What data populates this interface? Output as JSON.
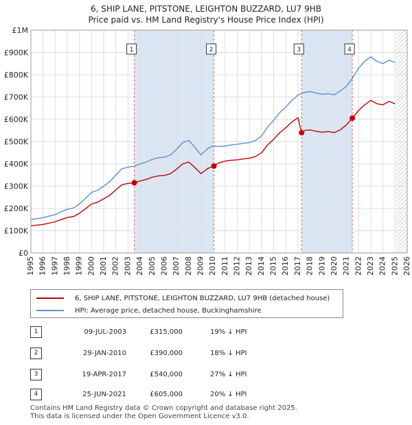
{
  "title_line1": "6, SHIP LANE, PITSTONE, LEIGHTON BUZZARD, LU7 9HB",
  "title_line2": "Price paid vs. HM Land Registry's House Price Index (HPI)",
  "legend": {
    "property": "6, SHIP LANE, PITSTONE, LEIGHTON BUZZARD, LU7 9HB (detached house)",
    "hpi": "HPI: Average price, detached house, Buckinghamshire"
  },
  "colors": {
    "property": "#c00000",
    "hpi": "#5b8fd0",
    "shade": "#dbe6f4",
    "grid": "#dddddd"
  },
  "transactions": [
    {
      "num": "1",
      "date": "09-JUL-2003",
      "price": "£315,000",
      "hpi": "19% ↓ HPI"
    },
    {
      "num": "2",
      "date": "29-JAN-2010",
      "price": "£390,000",
      "hpi": "18% ↓ HPI"
    },
    {
      "num": "3",
      "date": "19-APR-2017",
      "price": "£540,000",
      "hpi": "27% ↓ HPI"
    },
    {
      "num": "4",
      "date": "25-JUN-2021",
      "price": "£605,000",
      "hpi": "20% ↓ HPI"
    }
  ],
  "footer_line1": "Contains HM Land Registry data © Crown copyright and database right 2025.",
  "footer_line2": "This data is licensed under the Open Government Licence v3.0.",
  "chart_data": {
    "type": "line",
    "xlim": [
      1995,
      2026
    ],
    "ylim": [
      0,
      1000000
    ],
    "x_ticks": [
      1995,
      1996,
      1997,
      1998,
      1999,
      2000,
      2001,
      2002,
      2003,
      2004,
      2005,
      2006,
      2007,
      2008,
      2009,
      2010,
      2011,
      2012,
      2013,
      2014,
      2015,
      2016,
      2017,
      2018,
      2019,
      2020,
      2021,
      2022,
      2023,
      2024,
      2025,
      2026
    ],
    "y_ticks": [
      {
        "value": 0,
        "label": "£0"
      },
      {
        "value": 100000,
        "label": "£100K"
      },
      {
        "value": 200000,
        "label": "£200K"
      },
      {
        "value": 300000,
        "label": "£300K"
      },
      {
        "value": 400000,
        "label": "£400K"
      },
      {
        "value": 500000,
        "label": "£500K"
      },
      {
        "value": 600000,
        "label": "£600K"
      },
      {
        "value": 700000,
        "label": "£700K"
      },
      {
        "value": 800000,
        "label": "£800K"
      },
      {
        "value": 900000,
        "label": "£900K"
      },
      {
        "value": 1000000,
        "label": "£1M"
      }
    ],
    "shaded_ranges": [
      [
        2003.52,
        2010.08
      ],
      [
        2017.3,
        2021.48
      ]
    ],
    "forecast_start": 2025.1,
    "sales": [
      {
        "label": "1",
        "x": 2003.52,
        "y": 315000
      },
      {
        "label": "2",
        "x": 2010.08,
        "y": 390000
      },
      {
        "label": "3",
        "x": 2017.3,
        "y": 540000
      },
      {
        "label": "4",
        "x": 2021.48,
        "y": 605000
      }
    ],
    "series": [
      {
        "name": "HPI: Average price, detached house, Buckinghamshire",
        "x": [
          1995.0,
          1996.0,
          1997.0,
          1997.5,
          1998.0,
          1998.5,
          1999.0,
          1999.5,
          2000.0,
          2000.5,
          2001.0,
          2001.5,
          2002.0,
          2002.5,
          2003.0,
          2003.5,
          2004.0,
          2004.5,
          2005.0,
          2005.5,
          2006.0,
          2006.5,
          2007.0,
          2007.5,
          2008.0,
          2008.5,
          2009.0,
          2009.3,
          2009.6,
          2010.0,
          2010.5,
          2011.0,
          2011.5,
          2012.0,
          2012.5,
          2013.0,
          2013.5,
          2014.0,
          2014.5,
          2015.0,
          2015.5,
          2016.0,
          2016.5,
          2017.0,
          2017.5,
          2018.0,
          2018.5,
          2019.0,
          2019.5,
          2020.0,
          2020.5,
          2021.0,
          2021.5,
          2022.0,
          2022.5,
          2023.0,
          2023.5,
          2024.0,
          2024.5,
          2025.0
        ],
        "y": [
          150000,
          158000,
          172000,
          185000,
          196000,
          202000,
          220000,
          245000,
          272000,
          282000,
          300000,
          320000,
          350000,
          378000,
          385000,
          390000,
          400000,
          408000,
          420000,
          428000,
          430000,
          440000,
          465000,
          495000,
          505000,
          475000,
          440000,
          455000,
          470000,
          480000,
          478000,
          480000,
          485000,
          488000,
          492000,
          495000,
          505000,
          525000,
          565000,
          595000,
          630000,
          655000,
          685000,
          708000,
          720000,
          725000,
          718000,
          712000,
          715000,
          710000,
          728000,
          748000,
          785000,
          830000,
          860000,
          880000,
          860000,
          850000,
          865000,
          855000
        ]
      },
      {
        "name": "6, SHIP LANE, PITSTONE, LEIGHTON BUZZARD, LU7 9HB (detached house)",
        "x": [
          1995.0,
          1996.0,
          1997.0,
          1997.5,
          1998.0,
          1998.5,
          1999.0,
          1999.5,
          2000.0,
          2000.5,
          2001.0,
          2001.5,
          2002.0,
          2002.5,
          2003.0,
          2003.52,
          2004.0,
          2004.5,
          2005.0,
          2005.5,
          2006.0,
          2006.5,
          2007.0,
          2007.5,
          2008.0,
          2008.5,
          2009.0,
          2009.3,
          2009.6,
          2010.08,
          2010.5,
          2011.0,
          2011.5,
          2012.0,
          2012.5,
          2013.0,
          2013.5,
          2014.0,
          2014.5,
          2015.0,
          2015.5,
          2016.0,
          2016.5,
          2017.0,
          2017.3,
          2017.6,
          2018.0,
          2018.5,
          2019.0,
          2019.5,
          2020.0,
          2020.5,
          2021.0,
          2021.48,
          2022.0,
          2022.5,
          2023.0,
          2023.5,
          2024.0,
          2024.5,
          2025.0
        ],
        "y": [
          122000,
          128000,
          140000,
          150000,
          159000,
          163000,
          178000,
          198000,
          220000,
          228000,
          243000,
          259000,
          283000,
          306000,
          312000,
          315000,
          323000,
          330000,
          340000,
          346000,
          348000,
          356000,
          376000,
          400000,
          408000,
          384000,
          356000,
          368000,
          380000,
          390000,
          405000,
          412000,
          416000,
          418000,
          422000,
          425000,
          433000,
          450000,
          485000,
          510000,
          540000,
          562000,
          588000,
          607000,
          540000,
          550000,
          552000,
          546000,
          542000,
          545000,
          540000,
          553000,
          575000,
          605000,
          640000,
          665000,
          685000,
          670000,
          665000,
          680000,
          670000
        ]
      }
    ]
  }
}
